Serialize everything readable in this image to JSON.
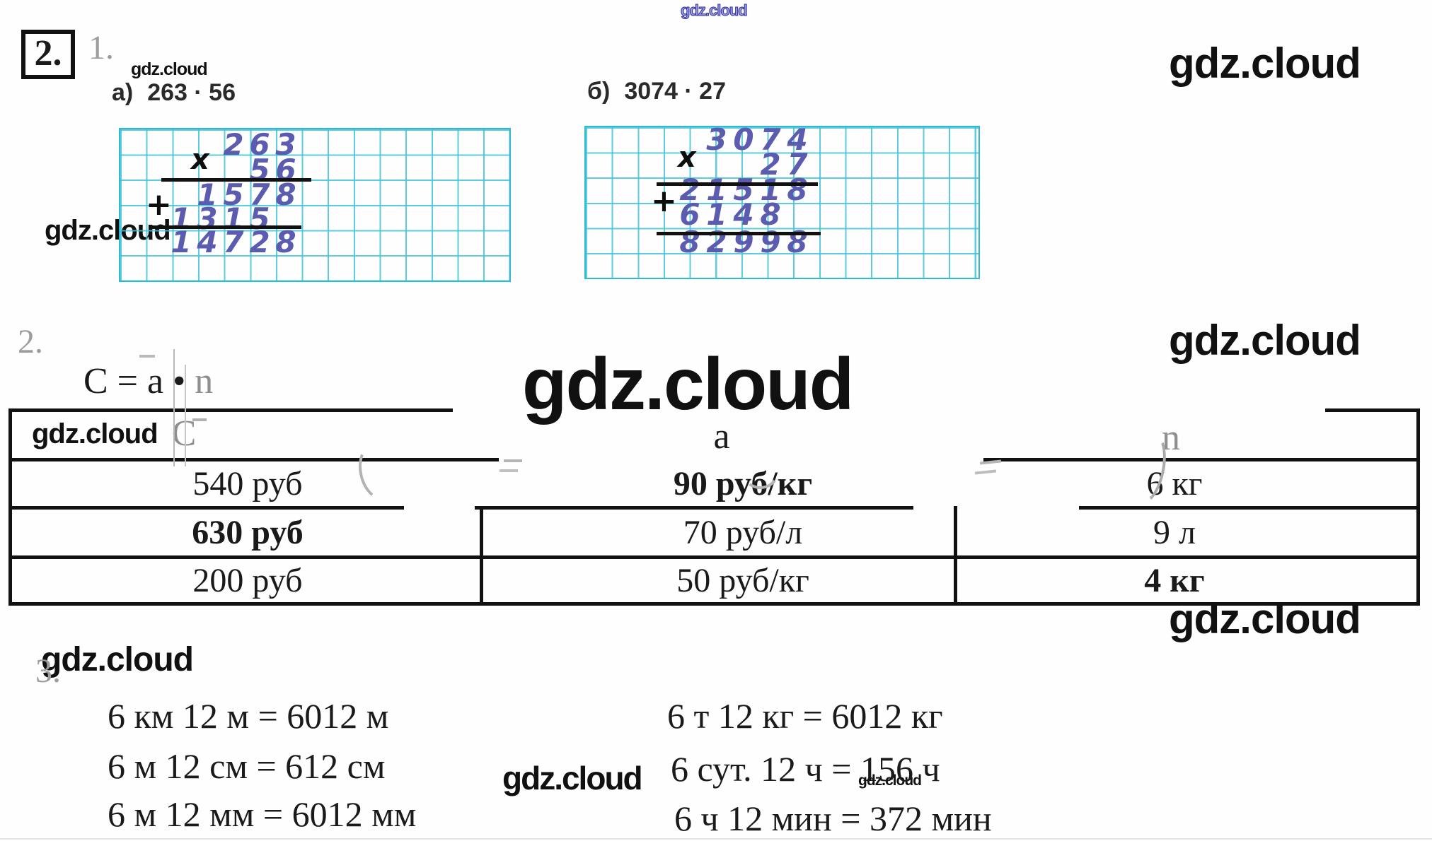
{
  "watermark": {
    "text": "gdz.cloud"
  },
  "problem": {
    "number": "2."
  },
  "section1": {
    "number": "1.",
    "times_sign": "x",
    "plus_sign": "+",
    "parts": {
      "a": {
        "label": "а)",
        "expression": "263 · 56",
        "calc_rows": [
          "263",
          "56",
          "1578",
          "1315",
          "14728"
        ]
      },
      "b": {
        "label": "б)",
        "expression": "3074 · 27",
        "calc_rows": [
          "3074",
          "27",
          "21518",
          "6148",
          "82998"
        ]
      }
    }
  },
  "section2": {
    "number": "2.",
    "formula": {
      "main": "C = a •",
      "variable": "n"
    },
    "table": {
      "headers": {
        "c": "C",
        "a": "a",
        "n": "n"
      },
      "rows": [
        {
          "c": "540 руб",
          "a": "90 руб/кг",
          "n": "6 кг"
        },
        {
          "c": "630 руб",
          "a": "70 руб/л",
          "n": "9 л"
        },
        {
          "c": "200 руб",
          "a": "50 руб/кг",
          "n": "4 кг"
        }
      ]
    }
  },
  "section3": {
    "number": "3.",
    "left": [
      "6 км 12 м = 6012 м",
      "6 м 12 см = 612 см",
      "6 м 12 мм = 6012 мм"
    ],
    "right": [
      "6 т 12 кг = 6012 кг",
      "6 сут. 12 ч = 156 ч",
      "6 ч 12 мин = 372 мин"
    ]
  }
}
